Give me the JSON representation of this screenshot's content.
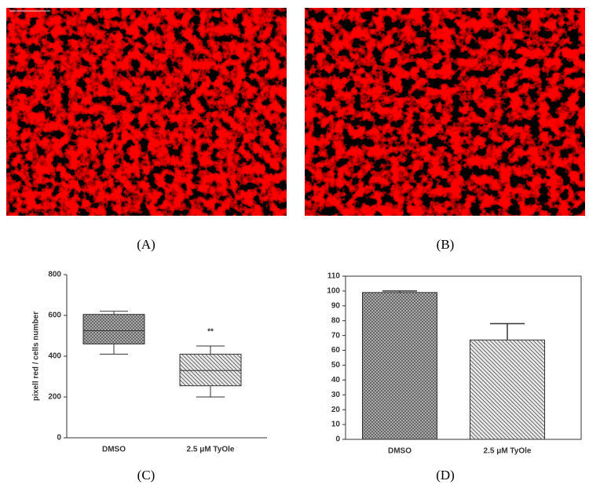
{
  "panel_labels": [
    "(A)",
    "(B)",
    "(C)",
    "(D)"
  ],
  "chart_data": [
    {
      "type": "box",
      "y_label": "pixell red / cells number",
      "categories": [
        "DMSO",
        "2.5 μM TyOle"
      ],
      "boxes": [
        {
          "min": 410,
          "q1": 460,
          "median": 525,
          "q3": 605,
          "max": 620
        },
        {
          "min": 200,
          "q1": 255,
          "median": 330,
          "q3": 410,
          "max": 450
        }
      ],
      "annotation": "**",
      "ylim": [
        0,
        800
      ],
      "yticks": [
        0,
        200,
        400,
        600,
        800
      ]
    },
    {
      "type": "bar",
      "categories": [
        "DMSO",
        "2.5 μM TyOle"
      ],
      "values": [
        99,
        67
      ],
      "errors": [
        1,
        11
      ],
      "ylim": [
        0,
        110
      ],
      "yticks": [
        0,
        10,
        20,
        30,
        40,
        50,
        60,
        70,
        80,
        90,
        100,
        110
      ]
    }
  ]
}
